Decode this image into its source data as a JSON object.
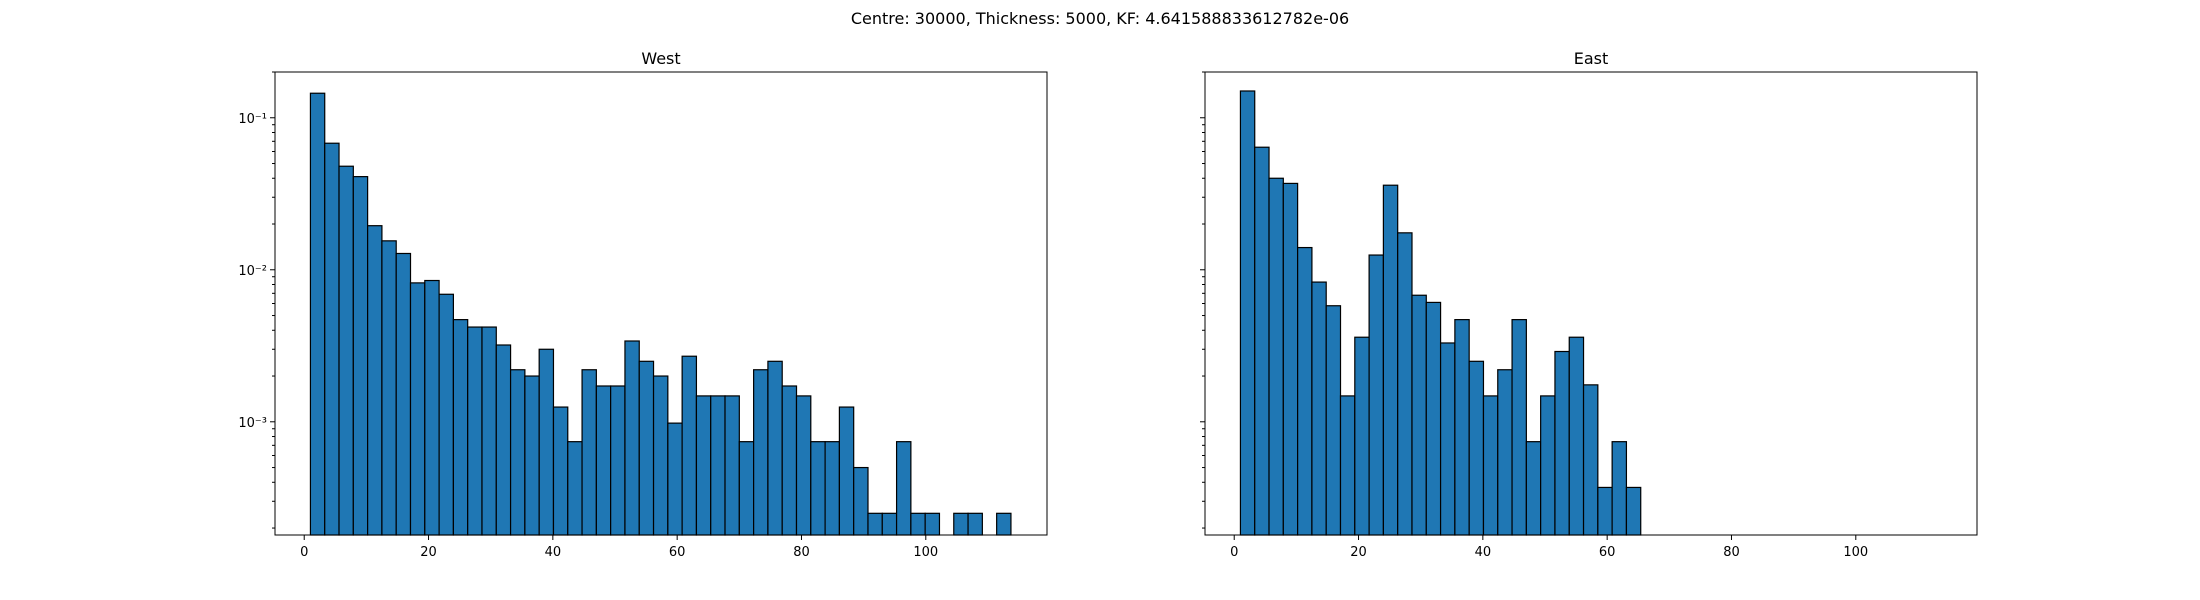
{
  "figure": {
    "suptitle": "Centre: 30000, Thickness: 5000, KF: 4.641588833612782e-06"
  },
  "chart_data": [
    {
      "type": "bar",
      "title": "West",
      "xlabel": "",
      "ylabel": "",
      "yscale": "log",
      "xlim": [
        -4.7,
        119.5
      ],
      "ylim": [
        0.00018,
        0.2
      ],
      "xticks": [
        0,
        20,
        40,
        60,
        80,
        100
      ],
      "yticks": [
        0.001,
        0.01,
        0.1
      ],
      "ytick_labels": [
        "10⁻³",
        "10⁻²",
        "10⁻¹"
      ],
      "bin_width": 2.3,
      "bin_start": 1,
      "values": [
        0.145,
        0.068,
        0.048,
        0.041,
        0.0195,
        0.0155,
        0.0128,
        0.0082,
        0.0085,
        0.0069,
        0.0047,
        0.0042,
        0.0042,
        0.0032,
        0.0022,
        0.002,
        0.003,
        0.00125,
        0.00074,
        0.0022,
        0.00172,
        0.00172,
        0.0034,
        0.0025,
        0.002,
        0.00098,
        0.0027,
        0.00148,
        0.00148,
        0.00148,
        0.00074,
        0.0022,
        0.0025,
        0.00172,
        0.00148,
        0.00074,
        0.00074,
        0.00125,
        0.0005,
        0.00025,
        0.00025,
        0.00074,
        0.00025,
        0.00025,
        0,
        0.00025,
        0.00025,
        0,
        0.00025
      ],
      "color": "#1f77b4"
    },
    {
      "type": "bar",
      "title": "East",
      "xlabel": "",
      "ylabel": "",
      "yscale": "log",
      "xlim": [
        -4.7,
        119.5
      ],
      "ylim": [
        0.00018,
        0.2
      ],
      "xticks": [
        0,
        20,
        40,
        60,
        80,
        100
      ],
      "yticks": [
        0.001,
        0.01,
        0.1
      ],
      "ytick_labels": [
        "",
        "",
        ""
      ],
      "bin_width": 2.3,
      "bin_start": 1,
      "values": [
        0.15,
        0.064,
        0.04,
        0.037,
        0.014,
        0.0083,
        0.0058,
        0.00148,
        0.0036,
        0.0125,
        0.036,
        0.0175,
        0.0068,
        0.0061,
        0.0033,
        0.0047,
        0.0025,
        0.00148,
        0.0022,
        0.0047,
        0.00074,
        0.00148,
        0.0029,
        0.0036,
        0.00175,
        0.00037,
        0.00074,
        0.00037
      ],
      "color": "#1f77b4"
    }
  ]
}
